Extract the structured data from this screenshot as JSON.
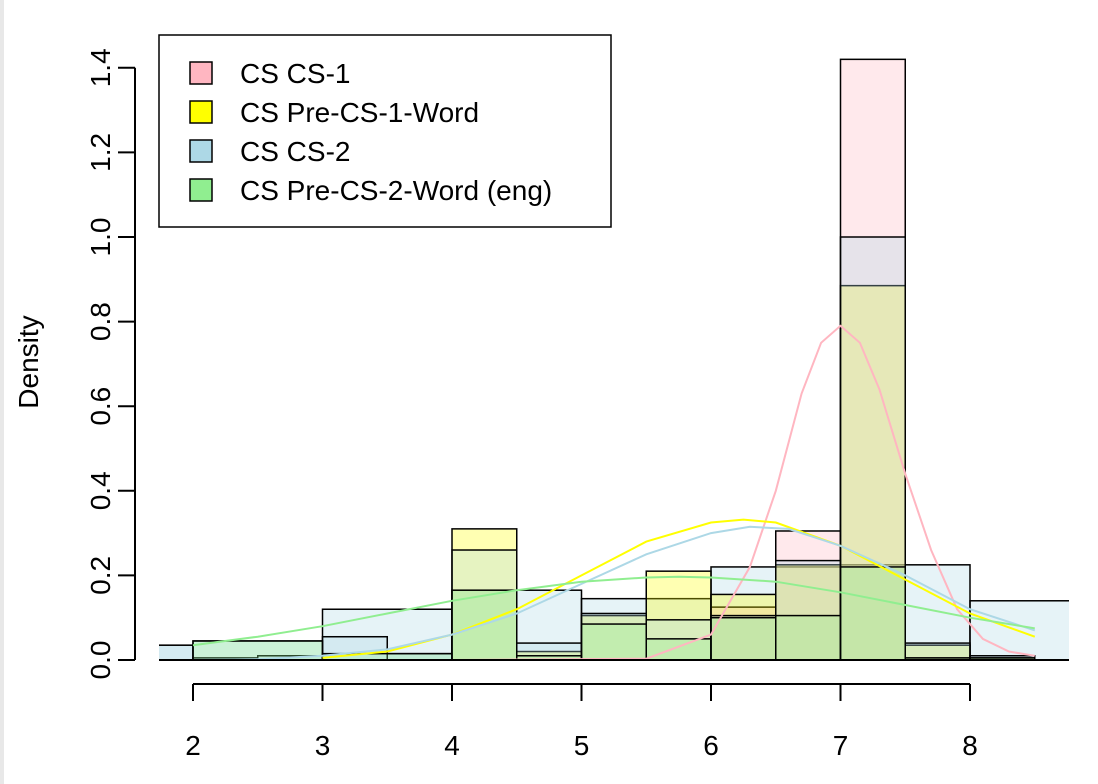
{
  "chart_data": {
    "type": "bar",
    "title": "",
    "xlabel": "",
    "ylabel": "Density",
    "xlim": [
      1.8,
      8.8
    ],
    "ylim": [
      0,
      1.44
    ],
    "x_ticks": [
      "2",
      "3",
      "4",
      "5",
      "6",
      "7",
      "8"
    ],
    "y_ticks": [
      "0.0",
      "0.2",
      "0.4",
      "0.6",
      "0.8",
      "1.0",
      "1.2",
      "1.4"
    ],
    "grid": false,
    "legend_position": "top-left",
    "series": [
      {
        "name": "CS CS-1",
        "color": "#ffb6c1",
        "bins": [
          {
            "x0": 4.0,
            "x1": 4.5,
            "y": 0.0
          },
          {
            "x0": 4.5,
            "x1": 5.0,
            "y": 0.0
          },
          {
            "x0": 5.0,
            "x1": 5.5,
            "y": 0.0
          },
          {
            "x0": 5.5,
            "x1": 6.0,
            "y": 0.0
          },
          {
            "x0": 6.0,
            "x1": 6.5,
            "y": 0.125
          },
          {
            "x0": 6.5,
            "x1": 7.0,
            "y": 0.305
          },
          {
            "x0": 7.0,
            "x1": 7.5,
            "y": 1.42
          },
          {
            "x0": 7.5,
            "x1": 8.0,
            "y": 0.005
          },
          {
            "x0": 8.0,
            "x1": 8.5,
            "y": 0.005
          }
        ],
        "density": {
          "x": [
            4.0,
            5.5,
            6.0,
            6.3,
            6.5,
            6.7,
            6.85,
            7.0,
            7.15,
            7.3,
            7.5,
            7.7,
            7.9,
            8.1,
            8.3,
            8.5
          ],
          "y": [
            0.0,
            0.003,
            0.06,
            0.22,
            0.4,
            0.63,
            0.75,
            0.79,
            0.75,
            0.64,
            0.44,
            0.26,
            0.12,
            0.05,
            0.02,
            0.01
          ]
        }
      },
      {
        "name": "CS Pre-CS-1-Word",
        "color": "#ffff00",
        "bins": [
          {
            "x0": 4.0,
            "x1": 4.5,
            "y": 0.31
          },
          {
            "x0": 4.5,
            "x1": 5.0,
            "y": 0.02
          },
          {
            "x0": 5.0,
            "x1": 5.5,
            "y": 0.105
          },
          {
            "x0": 5.5,
            "x1": 6.0,
            "y": 0.21
          },
          {
            "x0": 6.0,
            "x1": 6.5,
            "y": 0.155
          },
          {
            "x0": 6.5,
            "x1": 7.0,
            "y": 0.225
          },
          {
            "x0": 7.0,
            "x1": 7.5,
            "y": 0.885
          },
          {
            "x0": 7.5,
            "x1": 8.0,
            "y": 0.035
          },
          {
            "x0": 8.0,
            "x1": 8.5,
            "y": 0.005
          }
        ],
        "density": {
          "x": [
            3.0,
            3.5,
            4.0,
            4.5,
            5.0,
            5.5,
            6.0,
            6.25,
            6.5,
            7.0,
            7.5,
            8.0,
            8.5
          ],
          "y": [
            0.005,
            0.02,
            0.06,
            0.12,
            0.2,
            0.28,
            0.325,
            0.332,
            0.325,
            0.27,
            0.19,
            0.11,
            0.055
          ]
        }
      },
      {
        "name": "CS CS-2",
        "color": "#add8e6",
        "bins": [
          {
            "x0": 1.5,
            "x1": 2.0,
            "y": 0.035
          },
          {
            "x0": 2.0,
            "x1": 2.5,
            "y": 0.005
          },
          {
            "x0": 2.5,
            "x1": 3.0,
            "y": 0.01
          },
          {
            "x0": 3.0,
            "x1": 3.5,
            "y": 0.055
          },
          {
            "x0": 3.5,
            "x1": 4.0,
            "y": 0.015
          },
          {
            "x0": 4.0,
            "x1": 4.5,
            "y": 0.26
          },
          {
            "x0": 4.5,
            "x1": 5.0,
            "y": 0.04
          },
          {
            "x0": 5.0,
            "x1": 5.5,
            "y": 0.11
          },
          {
            "x0": 5.5,
            "x1": 6.0,
            "y": 0.095
          },
          {
            "x0": 6.0,
            "x1": 6.5,
            "y": 0.105
          },
          {
            "x0": 6.5,
            "x1": 7.0,
            "y": 0.235
          },
          {
            "x0": 7.0,
            "x1": 7.5,
            "y": 1.0
          },
          {
            "x0": 7.5,
            "x1": 8.0,
            "y": 0.04
          },
          {
            "x0": 8.0,
            "x1": 8.5,
            "y": 0.01
          }
        ],
        "density": {
          "x": [
            2.0,
            2.5,
            3.0,
            3.5,
            4.0,
            4.5,
            5.0,
            5.5,
            6.0,
            6.3,
            6.6,
            7.0,
            7.5,
            8.0,
            8.5
          ],
          "y": [
            0.0,
            0.002,
            0.01,
            0.025,
            0.06,
            0.11,
            0.18,
            0.25,
            0.3,
            0.315,
            0.31,
            0.27,
            0.2,
            0.12,
            0.07
          ]
        }
      },
      {
        "name": "CS Pre-CS-2-Word (eng)",
        "color": "#90ee90",
        "bins": [
          {
            "x0": 2.0,
            "x1": 3.0,
            "y": 0.045
          },
          {
            "x0": 3.0,
            "x1": 4.0,
            "y": 0.015
          },
          {
            "x0": 4.0,
            "x1": 4.5,
            "y": 0.165
          },
          {
            "x0": 4.5,
            "x1": 5.0,
            "y": 0.01
          },
          {
            "x0": 5.0,
            "x1": 5.5,
            "y": 0.085
          },
          {
            "x0": 5.5,
            "x1": 6.0,
            "y": 0.05
          },
          {
            "x0": 6.0,
            "x1": 6.5,
            "y": 0.1
          },
          {
            "x0": 6.5,
            "x1": 7.0,
            "y": 0.105
          },
          {
            "x0": 7.0,
            "x1": 7.5,
            "y": 0.22
          },
          {
            "x0": 7.5,
            "x1": 8.0,
            "y": 0.005
          },
          {
            "x0": 8.0,
            "x1": 8.5,
            "y": 0.005
          }
        ],
        "density": {
          "x": [
            2.0,
            2.5,
            3.0,
            3.5,
            4.0,
            4.5,
            5.0,
            5.5,
            5.75,
            6.0,
            6.5,
            7.0,
            7.5,
            8.0,
            8.5
          ],
          "y": [
            0.035,
            0.055,
            0.08,
            0.11,
            0.14,
            0.165,
            0.185,
            0.195,
            0.197,
            0.195,
            0.185,
            0.16,
            0.13,
            0.1,
            0.075
          ]
        }
      },
      {
        "name": "",
        "color": "#add8e6",
        "bins": [
          {
            "x0": 1.0,
            "x1": 2.0,
            "y": 0.035
          },
          {
            "x0": 2.0,
            "x1": 3.0,
            "y": 0.045
          },
          {
            "x0": 3.0,
            "x1": 4.0,
            "y": 0.12
          },
          {
            "x0": 4.0,
            "x1": 5.0,
            "y": 0.165
          },
          {
            "x0": 5.0,
            "x1": 6.0,
            "y": 0.145
          },
          {
            "x0": 6.0,
            "x1": 7.0,
            "y": 0.22
          },
          {
            "x0": 7.0,
            "x1": 8.0,
            "y": 0.225
          },
          {
            "x0": 8.0,
            "x1": 9.0,
            "y": 0.14
          }
        ]
      }
    ]
  }
}
